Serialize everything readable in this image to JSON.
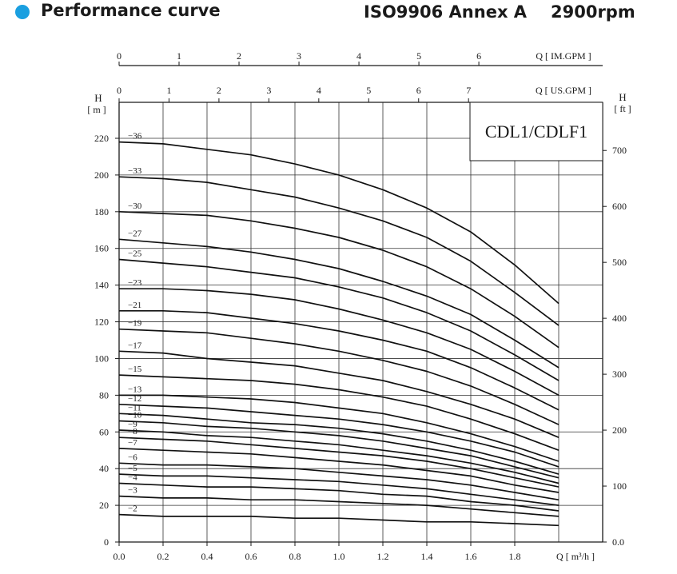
{
  "header": {
    "title": "Performance curve",
    "standard": "ISO9906 Annex A",
    "speed": "2900rpm",
    "bullet_color": "#1a9fe0"
  },
  "chart_data": {
    "type": "line",
    "title": "CDL1/CDLF1",
    "x": [
      0.0,
      0.2,
      0.4,
      0.6,
      0.8,
      1.0,
      1.2,
      1.4,
      1.6,
      1.8,
      2.0
    ],
    "xlim": [
      0.0,
      2.0
    ],
    "ylim": [
      0,
      220
    ],
    "grid": true,
    "xlabel": "Q [ m³/h ]",
    "ylabel": "H [ m ]",
    "x_ticks": [
      "0.0",
      "0.2",
      "0.4",
      "0.6",
      "0.8",
      "1.0",
      "1.2",
      "1.4",
      "1.6",
      "1.8"
    ],
    "y_ticks": [
      "0",
      "20",
      "40",
      "60",
      "80",
      "100",
      "120",
      "140",
      "160",
      "180",
      "200",
      "220"
    ],
    "secondary_y": {
      "label": "H [ ft ]",
      "ticks": [
        "0.0",
        "100",
        "200",
        "300",
        "400",
        "500",
        "600",
        "700"
      ],
      "tick_values": [
        0,
        100,
        200,
        300,
        400,
        500,
        600,
        700
      ],
      "ft_per_m": 3.2808
    },
    "top_axis_us_gpm": {
      "label": "Q [ US.GPM ]",
      "ticks": [
        "0",
        "1",
        "2",
        "3",
        "4",
        "5",
        "6",
        "7"
      ],
      "gpm_per_m3h": 4.403
    },
    "top_axis_im_gpm": {
      "label": "Q [ IM.GPM ]",
      "ticks": [
        "0",
        "1",
        "2",
        "3",
        "4",
        "5",
        "6"
      ],
      "gpm_per_m3h": 3.666
    },
    "series": [
      {
        "name": "36",
        "values": [
          218,
          217,
          214,
          211,
          206,
          200,
          192,
          182,
          169,
          151,
          130
        ]
      },
      {
        "name": "33",
        "values": [
          199,
          198,
          196,
          192,
          188,
          182,
          175,
          166,
          153,
          136,
          118
        ]
      },
      {
        "name": "30",
        "values": [
          180,
          179,
          178,
          175,
          171,
          166,
          159,
          150,
          138,
          123,
          106
        ]
      },
      {
        "name": "27",
        "values": [
          165,
          163,
          161,
          158,
          154,
          149,
          142,
          134,
          124,
          110,
          95
        ]
      },
      {
        "name": "25",
        "values": [
          154,
          152,
          150,
          147,
          144,
          139,
          133,
          125,
          115,
          102,
          88
        ]
      },
      {
        "name": "23",
        "values": [
          138,
          138,
          137,
          135,
          132,
          127,
          121,
          114,
          105,
          93,
          80
        ]
      },
      {
        "name": "21",
        "values": [
          126,
          126,
          125,
          122,
          119,
          115,
          110,
          104,
          95,
          84,
          72
        ]
      },
      {
        "name": "19",
        "values": [
          116,
          115,
          114,
          111,
          108,
          104,
          99,
          93,
          85,
          75,
          64
        ]
      },
      {
        "name": "17",
        "values": [
          104,
          103,
          100,
          98,
          96,
          92,
          88,
          82,
          75,
          67,
          57
        ]
      },
      {
        "name": "15",
        "values": [
          91,
          90,
          89,
          88,
          86,
          83,
          79,
          74,
          67,
          59,
          50
        ]
      },
      {
        "name": "13",
        "values": [
          80,
          80,
          79,
          78,
          76,
          73,
          70,
          65,
          59,
          52,
          44
        ]
      },
      {
        "name": "12",
        "values": [
          75,
          74,
          73,
          71,
          69,
          67,
          64,
          60,
          55,
          49,
          41
        ]
      },
      {
        "name": "11",
        "values": [
          70,
          69,
          67,
          65,
          64,
          62,
          59,
          55,
          50,
          44,
          37
        ]
      },
      {
        "name": "10",
        "values": [
          66,
          65,
          63,
          62,
          60,
          58,
          55,
          51,
          47,
          41,
          35
        ]
      },
      {
        "name": "9",
        "values": [
          61,
          60,
          58,
          57,
          55,
          53,
          50,
          47,
          43,
          38,
          32
        ]
      },
      {
        "name": "8",
        "values": [
          57,
          56,
          55,
          53,
          51,
          49,
          47,
          44,
          40,
          35,
          30
        ]
      },
      {
        "name": "7",
        "values": [
          51,
          50,
          49,
          48,
          46,
          44,
          42,
          39,
          36,
          31,
          27
        ]
      },
      {
        "name": "6",
        "values": [
          43,
          42,
          42,
          41,
          40,
          38,
          36,
          34,
          31,
          27,
          23
        ]
      },
      {
        "name": "5",
        "values": [
          37,
          36,
          36,
          35,
          34,
          33,
          31,
          29,
          26,
          23,
          20
        ]
      },
      {
        "name": "4",
        "values": [
          32,
          31,
          30,
          30,
          29,
          28,
          26,
          25,
          22,
          20,
          17
        ]
      },
      {
        "name": "3",
        "values": [
          25,
          24,
          24,
          23,
          23,
          22,
          21,
          20,
          18,
          16,
          14
        ]
      },
      {
        "name": "2",
        "values": [
          15,
          14,
          14,
          14,
          13,
          13,
          12,
          11,
          11,
          10,
          9
        ]
      }
    ]
  }
}
